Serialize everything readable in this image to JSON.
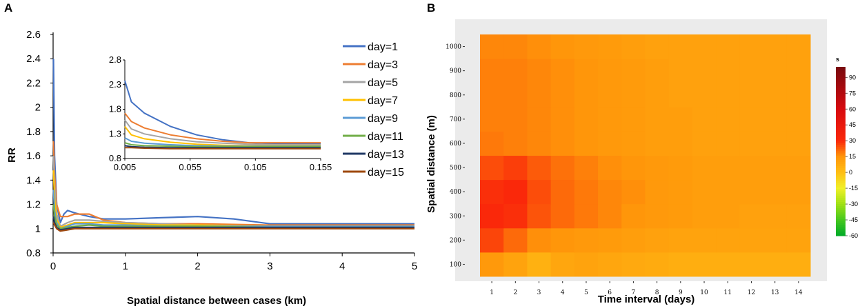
{
  "chart_data": [
    {
      "panel": "A",
      "type": "line",
      "title": "",
      "xlabel": "Spatial distance between cases (km)",
      "ylabel": "RR",
      "xlim": [
        0,
        5
      ],
      "ylim": [
        0.8,
        2.6
      ],
      "xticks": [
        "0",
        "1",
        "2",
        "3",
        "4",
        "5"
      ],
      "yticks": [
        "0.8",
        "1",
        "1.2",
        "1.4",
        "1.6",
        "1.8",
        "2",
        "2.2",
        "2.4",
        "2.6"
      ],
      "legend_position": "top-right",
      "series": [
        {
          "name": "day=1",
          "color": "#4472C4",
          "x": [
            0.005,
            0.02,
            0.05,
            0.1,
            0.15,
            0.2,
            0.3,
            0.5,
            0.7,
            1,
            1.5,
            2,
            2.5,
            3,
            3.5,
            4,
            5
          ],
          "y": [
            2.4,
            1.6,
            1.2,
            1.05,
            1.12,
            1.15,
            1.13,
            1.1,
            1.08,
            1.08,
            1.09,
            1.1,
            1.08,
            1.04,
            1.04,
            1.04,
            1.04
          ]
        },
        {
          "name": "day=3",
          "color": "#ED7D31",
          "x": [
            0.005,
            0.02,
            0.05,
            0.1,
            0.2,
            0.3,
            0.5,
            0.7,
            1,
            1.5,
            2,
            3,
            4,
            5
          ],
          "y": [
            1.72,
            1.45,
            1.2,
            1.1,
            1.1,
            1.12,
            1.12,
            1.07,
            1.05,
            1.04,
            1.04,
            1.03,
            1.03,
            1.03
          ]
        },
        {
          "name": "day=5",
          "color": "#A5A5A5",
          "x": [
            0.005,
            0.02,
            0.05,
            0.1,
            0.2,
            0.3,
            0.5,
            0.7,
            1,
            1.5,
            2,
            3,
            4,
            5
          ],
          "y": [
            1.6,
            1.35,
            1.12,
            1.02,
            1.05,
            1.07,
            1.07,
            1.06,
            1.05,
            1.04,
            1.03,
            1.02,
            1.02,
            1.02
          ]
        },
        {
          "name": "day=7",
          "color": "#FFC000",
          "x": [
            0.005,
            0.02,
            0.05,
            0.1,
            0.2,
            0.3,
            0.5,
            0.7,
            1,
            1.5,
            2,
            3,
            4,
            5
          ],
          "y": [
            1.48,
            1.25,
            1.08,
            1.01,
            1.03,
            1.05,
            1.05,
            1.05,
            1.04,
            1.03,
            1.03,
            1.02,
            1.02,
            1.02
          ]
        },
        {
          "name": "day=9",
          "color": "#5B9BD5",
          "x": [
            0.005,
            0.02,
            0.05,
            0.1,
            0.2,
            0.3,
            0.5,
            0.7,
            1,
            1.5,
            2,
            3,
            4,
            5
          ],
          "y": [
            1.32,
            1.15,
            1.05,
            1.0,
            1.02,
            1.04,
            1.04,
            1.03,
            1.03,
            1.02,
            1.02,
            1.02,
            1.02,
            1.02
          ]
        },
        {
          "name": "day=11",
          "color": "#70AD47",
          "x": [
            0.005,
            0.02,
            0.05,
            0.1,
            0.2,
            0.3,
            0.5,
            0.7,
            1,
            1.5,
            2,
            3,
            4,
            5
          ],
          "y": [
            1.2,
            1.1,
            1.03,
            1.0,
            1.01,
            1.02,
            1.03,
            1.02,
            1.02,
            1.02,
            1.02,
            1.01,
            1.01,
            1.01
          ]
        },
        {
          "name": "day=13",
          "color": "#1F3864",
          "x": [
            0.005,
            0.02,
            0.05,
            0.1,
            0.2,
            0.3,
            0.5,
            0.7,
            1,
            1.5,
            2,
            3,
            4,
            5
          ],
          "y": [
            1.1,
            1.05,
            1.01,
            0.99,
            1.0,
            1.01,
            1.01,
            1.01,
            1.01,
            1.01,
            1.01,
            1.01,
            1.01,
            1.01
          ]
        },
        {
          "name": "day=15",
          "color": "#9E480E",
          "x": [
            0.005,
            0.02,
            0.05,
            0.1,
            0.2,
            0.3,
            0.5,
            0.7,
            1,
            1.5,
            2,
            3,
            4,
            5
          ],
          "y": [
            1.05,
            1.03,
            1.0,
            0.98,
            0.99,
            1.0,
            1.0,
            1.0,
            1.0,
            1.0,
            1.0,
            1.0,
            1.0,
            1.0
          ]
        }
      ],
      "inset": {
        "xlim": [
          0.005,
          0.155
        ],
        "ylim": [
          0.8,
          2.8
        ],
        "xticks": [
          "0.005",
          "0.055",
          "0.105",
          "0.155"
        ],
        "yticks": [
          "0.8",
          "1.3",
          "1.8",
          "2.3",
          "2.8"
        ],
        "series": [
          {
            "name": "day=1",
            "color": "#4472C4",
            "x": [
              0.005,
              0.01,
              0.02,
              0.04,
              0.06,
              0.08,
              0.1,
              0.12,
              0.155
            ],
            "y": [
              2.38,
              1.95,
              1.72,
              1.45,
              1.28,
              1.18,
              1.12,
              1.1,
              1.1
            ]
          },
          {
            "name": "day=3",
            "color": "#ED7D31",
            "x": [
              0.005,
              0.01,
              0.02,
              0.04,
              0.06,
              0.08,
              0.1,
              0.12,
              0.155
            ],
            "y": [
              1.72,
              1.55,
              1.42,
              1.28,
              1.2,
              1.15,
              1.12,
              1.12,
              1.12
            ]
          },
          {
            "name": "day=5",
            "color": "#A5A5A5",
            "x": [
              0.005,
              0.01,
              0.02,
              0.04,
              0.06,
              0.08,
              0.1,
              0.12,
              0.155
            ],
            "y": [
              1.58,
              1.4,
              1.3,
              1.2,
              1.14,
              1.11,
              1.09,
              1.08,
              1.08
            ]
          },
          {
            "name": "day=7",
            "color": "#FFC000",
            "x": [
              0.005,
              0.01,
              0.02,
              0.04,
              0.06,
              0.08,
              0.1,
              0.12,
              0.155
            ],
            "y": [
              1.45,
              1.28,
              1.2,
              1.13,
              1.09,
              1.07,
              1.06,
              1.06,
              1.06
            ]
          },
          {
            "name": "day=9",
            "color": "#5B9BD5",
            "x": [
              0.005,
              0.01,
              0.02,
              0.04,
              0.06,
              0.08,
              0.1,
              0.12,
              0.155
            ],
            "y": [
              1.22,
              1.15,
              1.11,
              1.08,
              1.06,
              1.05,
              1.05,
              1.05,
              1.05
            ]
          },
          {
            "name": "day=11",
            "color": "#70AD47",
            "x": [
              0.005,
              0.01,
              0.02,
              0.04,
              0.06,
              0.08,
              0.1,
              0.12,
              0.155
            ],
            "y": [
              1.12,
              1.08,
              1.06,
              1.05,
              1.04,
              1.04,
              1.04,
              1.04,
              1.04
            ]
          },
          {
            "name": "day=13",
            "color": "#1F3864",
            "x": [
              0.005,
              0.01,
              0.02,
              0.04,
              0.06,
              0.08,
              0.1,
              0.12,
              0.155
            ],
            "y": [
              1.06,
              1.04,
              1.03,
              1.02,
              1.02,
              1.02,
              1.02,
              1.02,
              1.02
            ]
          },
          {
            "name": "day=15",
            "color": "#9E480E",
            "x": [
              0.005,
              0.01,
              0.02,
              0.04,
              0.06,
              0.08,
              0.1,
              0.12,
              0.155
            ],
            "y": [
              1.02,
              1.02,
              1.01,
              1.0,
              1.0,
              1.0,
              1.0,
              1.0,
              1.0
            ]
          }
        ]
      }
    },
    {
      "panel": "B",
      "type": "heatmap",
      "title": "",
      "xlabel": "Time interval (days)",
      "ylabel": "Spatial distance (m)",
      "x": [
        1,
        2,
        3,
        4,
        5,
        6,
        7,
        8,
        9,
        10,
        11,
        12,
        13,
        14
      ],
      "y": [
        100,
        200,
        300,
        400,
        500,
        600,
        700,
        800,
        900,
        1000
      ],
      "values": [
        [
          14,
          10,
          5,
          9,
          10,
          9,
          8,
          7,
          6,
          6,
          6,
          6,
          6,
          6
        ],
        [
          26,
          21,
          16,
          15,
          14,
          13,
          12,
          11,
          10,
          10,
          10,
          10,
          10,
          10
        ],
        [
          30,
          29,
          24,
          21,
          19,
          17,
          15,
          14,
          13,
          12,
          12,
          11,
          11,
          11
        ],
        [
          29,
          30,
          25,
          21,
          19,
          17,
          16,
          14,
          13,
          12,
          12,
          12,
          12,
          12
        ],
        [
          25,
          27,
          23,
          20,
          18,
          16,
          15,
          14,
          13,
          12,
          12,
          12,
          12,
          12
        ],
        [
          19,
          18,
          17,
          16,
          15,
          14,
          13,
          12,
          12,
          11,
          11,
          11,
          11,
          11
        ],
        [
          18,
          18,
          17,
          16,
          15,
          14,
          13,
          12,
          12,
          11,
          11,
          11,
          11,
          11
        ],
        [
          18,
          18,
          17,
          16,
          15,
          14,
          13,
          12,
          11,
          11,
          11,
          11,
          11,
          11
        ],
        [
          18,
          18,
          17,
          16,
          15,
          14,
          13,
          12,
          11,
          11,
          11,
          11,
          11,
          11
        ],
        [
          17,
          17,
          16,
          15,
          14,
          13,
          12,
          11,
          11,
          11,
          11,
          11,
          11,
          11
        ]
      ],
      "colorbar": {
        "title": "s",
        "ticks": [
          "90",
          "75",
          "60",
          "45",
          "30",
          "15",
          "0",
          "-15",
          "-30",
          "-45",
          "-60"
        ],
        "range": [
          -60,
          100
        ]
      }
    }
  ]
}
